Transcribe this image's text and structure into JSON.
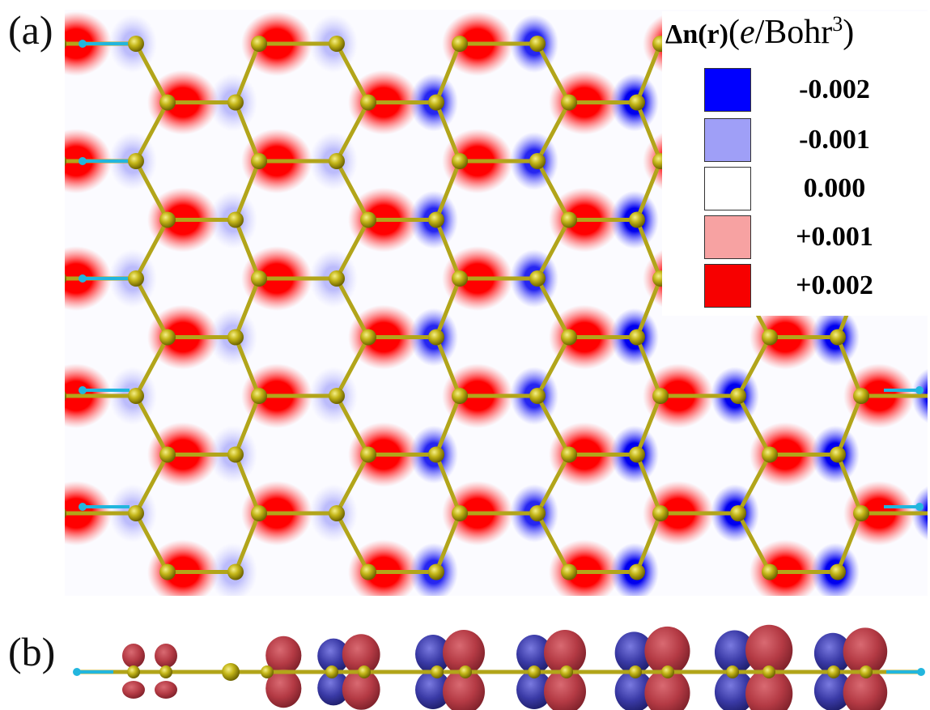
{
  "panels": {
    "a": {
      "label": "(a)"
    },
    "b": {
      "label": "(b)"
    }
  },
  "legend": {
    "title_quantity": "Δn(r)",
    "title_unit_open": "(",
    "title_unit_e": "e",
    "title_unit_rest": "/Bohr",
    "title_unit_exp": "3",
    "title_unit_close": ")",
    "entries": [
      {
        "label": "-0.002",
        "color": "#0000ff"
      },
      {
        "label": "-0.001",
        "color": "#9f9ff7"
      },
      {
        "label": "0.000",
        "color": "#ffffff"
      },
      {
        "label": "+0.001",
        "color": "#f7a2a2"
      },
      {
        "label": "+0.002",
        "color": "#f70000"
      }
    ]
  },
  "colors": {
    "carbon_atom": "#b9ac0d",
    "bond": "#b2a51a",
    "hydrogen_atom": "#22b6de",
    "positive_density": "#ff0000",
    "negative_density": "#0000ee",
    "isosurface_positive": "#b43a44",
    "isosurface_negative": "#3a3aa6"
  }
}
